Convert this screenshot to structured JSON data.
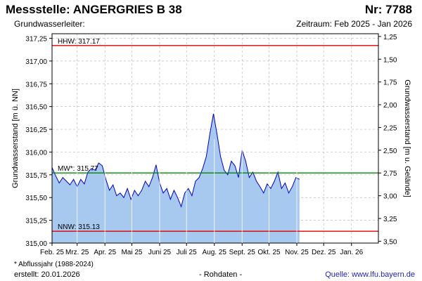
{
  "header": {
    "title_left": "Messstelle: ANGERGRIES B 38",
    "title_right": "Nr: 7788",
    "subtitle_left": "Grundwasserleiter:",
    "subtitle_right": "Zeitraum: Feb 2025 - Jan 2026"
  },
  "footer": {
    "footnote": "* Abflussjahr (1988-2024)",
    "created": "erstellt:  20.01.2026",
    "rawdata": "- Rohdaten -",
    "source": "Quelle: www.lfu.bayern.de"
  },
  "colors": {
    "fill": "#a7c8ef",
    "line": "#0000cc",
    "hhw_line": "#e00000",
    "nnw_line": "#e00000",
    "mw_line": "#008800",
    "grid": "#bbbbbb"
  },
  "chart_data": {
    "type": "area",
    "ylabel_left": "Grundwasserstand [m ü. NN]",
    "ylabel_right": "Grundwasserstand [m u. Gelände]",
    "ylim": [
      315.0,
      317.3
    ],
    "yticks_left": [
      "317,25",
      "317,00",
      "316,75",
      "316,50",
      "316,25",
      "316,00",
      "315,75",
      "315,50",
      "315,25",
      "315,00"
    ],
    "yticks_left_values": [
      317.25,
      317.0,
      316.75,
      316.5,
      316.25,
      316.0,
      315.75,
      315.5,
      315.25,
      315.0
    ],
    "yticks_right": [
      "1,25",
      "1,50",
      "1,75",
      "2,00",
      "2,25",
      "2,50",
      "2,75",
      "3,00",
      "3,25",
      "3,50"
    ],
    "yticks_right_values": [
      317.27,
      317.02,
      316.77,
      316.52,
      316.27,
      316.02,
      315.77,
      315.52,
      315.27,
      315.02
    ],
    "xlim": [
      "2025-02-01",
      "2026-01-31"
    ],
    "xticks": [
      "Feb. 25",
      "Mrz. 25",
      "Apr. 25",
      "Mai 25",
      "Juni 25",
      "Juli 25",
      "Aug. 25",
      "Sept. 25",
      "Okt. 25",
      "Nov. 25",
      "Dez. 25",
      "Jan. 26"
    ],
    "xtick_dates": [
      "2025-02-01",
      "2025-03-01",
      "2025-04-01",
      "2025-05-01",
      "2025-06-01",
      "2025-07-01",
      "2025-08-01",
      "2025-09-01",
      "2025-10-01",
      "2025-11-01",
      "2025-12-01",
      "2026-01-01"
    ],
    "reference_lines": [
      {
        "label": "HHW: 317.17",
        "value": 317.17,
        "kind": "hhw"
      },
      {
        "label": "MW*: 315.77",
        "value": 315.77,
        "kind": "mw"
      },
      {
        "label": "NNW: 315.13",
        "value": 315.13,
        "kind": "nnw"
      }
    ],
    "series": [
      {
        "x": [
          "2025-02-01",
          "2025-02-05",
          "2025-02-09",
          "2025-02-13",
          "2025-02-17",
          "2025-02-21",
          "2025-02-25",
          "2025-03-01",
          "2025-03-05",
          "2025-03-09",
          "2025-03-13",
          "2025-03-17",
          "2025-03-21",
          "2025-03-25",
          "2025-03-29",
          "2025-04-02",
          "2025-04-06",
          "2025-04-10",
          "2025-04-14",
          "2025-04-18",
          "2025-04-22",
          "2025-04-26",
          "2025-04-30",
          "2025-05-04",
          "2025-05-08",
          "2025-05-12",
          "2025-05-16",
          "2025-05-20",
          "2025-05-24",
          "2025-05-28",
          "2025-06-01",
          "2025-06-05",
          "2025-06-09",
          "2025-06-13",
          "2025-06-17",
          "2025-06-21",
          "2025-06-25",
          "2025-06-29",
          "2025-07-03",
          "2025-07-07",
          "2025-07-11",
          "2025-07-15",
          "2025-07-19",
          "2025-07-23",
          "2025-07-27",
          "2025-07-31",
          "2025-08-04",
          "2025-08-08",
          "2025-08-12",
          "2025-08-16",
          "2025-08-20",
          "2025-08-24",
          "2025-08-28",
          "2025-09-01",
          "2025-09-05",
          "2025-09-09",
          "2025-09-13",
          "2025-09-17",
          "2025-09-21",
          "2025-09-25",
          "2025-09-29",
          "2025-10-03",
          "2025-10-07",
          "2025-10-11",
          "2025-10-15",
          "2025-10-19",
          "2025-10-23",
          "2025-10-27",
          "2025-10-31",
          "2025-11-04"
        ],
        "y": [
          315.83,
          315.74,
          315.66,
          315.72,
          315.68,
          315.64,
          315.7,
          315.62,
          315.7,
          315.65,
          315.78,
          315.82,
          315.8,
          315.88,
          315.85,
          315.7,
          315.58,
          315.64,
          315.52,
          315.55,
          315.5,
          315.6,
          315.48,
          315.58,
          315.52,
          315.58,
          315.68,
          315.62,
          315.72,
          315.86,
          315.66,
          315.55,
          315.6,
          315.48,
          315.58,
          315.5,
          315.4,
          315.55,
          315.6,
          315.52,
          315.68,
          315.72,
          315.82,
          315.95,
          316.2,
          316.42,
          316.2,
          315.95,
          315.8,
          315.75,
          315.9,
          315.85,
          315.72,
          316.02,
          315.9,
          315.72,
          315.78,
          315.68,
          315.62,
          315.55,
          315.65,
          315.6,
          315.68,
          315.78,
          315.6,
          315.66,
          315.55,
          315.62,
          315.72,
          315.7
        ]
      }
    ]
  }
}
